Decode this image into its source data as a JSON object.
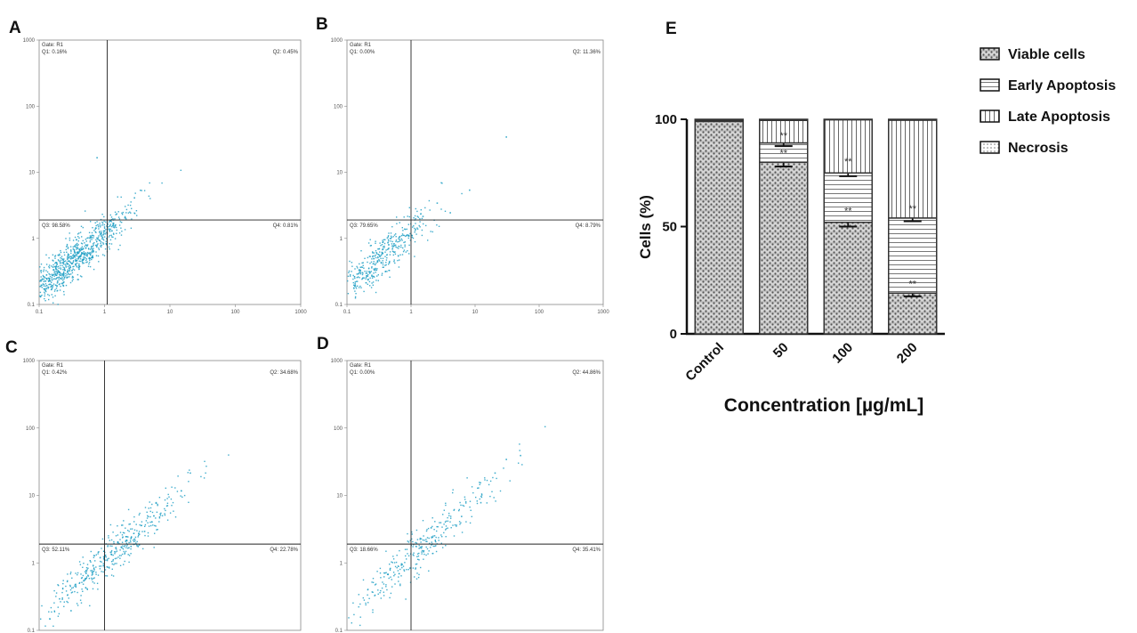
{
  "colors": {
    "dot": "#1e9fc4",
    "ink": "#222222",
    "bar_edge": "#333333"
  },
  "chart_data": [
    {
      "panel": "A",
      "type": "scatter",
      "xscale": "log",
      "yscale": "log",
      "xlim": [
        0.1,
        1000
      ],
      "ylim": [
        0.1,
        1000
      ],
      "x_ticks": [
        "0.1",
        "1",
        "10",
        "100",
        "1000"
      ],
      "y_ticks": [
        "0.1",
        "1",
        "10",
        "100",
        "1000"
      ],
      "gate": "Gate: R1",
      "gate_x": 1.1,
      "gate_y": 1.9,
      "quadrants": {
        "q1": "Q1: 0.16%",
        "q2": "Q2: 0.45%",
        "q3": "Q3: 98.58%",
        "q4": "Q4: 0.81%"
      },
      "population": {
        "cx": 0.3,
        "cy": 0.45,
        "spread_x": 0.42,
        "spread_y": 0.38,
        "count": 900
      },
      "outliers": [
        [
          0.75,
          17
        ],
        [
          2.8,
          4.2
        ],
        [
          1.5,
          2.4
        ],
        [
          2.0,
          2.1
        ],
        [
          1.3,
          1.6
        ]
      ]
    },
    {
      "panel": "B",
      "type": "scatter",
      "xscale": "log",
      "yscale": "log",
      "xlim": [
        0.1,
        1000
      ],
      "ylim": [
        0.1,
        1000
      ],
      "x_ticks": [
        "0.1",
        "1",
        "10",
        "100",
        "1000"
      ],
      "y_ticks": [
        "0.1",
        "1",
        "10",
        "100",
        "1000"
      ],
      "gate": "Gate: R1",
      "gate_x": 1.0,
      "gate_y": 1.9,
      "quadrants": {
        "q1": "Q1: 0.00%",
        "q2": "Q2: 11.36%",
        "q3": "Q3: 79.65%",
        "q4": "Q4: 8.79%"
      },
      "population": {
        "cx": 0.35,
        "cy": 0.55,
        "spread_x": 0.33,
        "spread_y": 0.3,
        "count": 420
      },
      "outliers": [
        [
          8,
          5.5
        ],
        [
          4,
          2.5
        ],
        [
          2.5,
          3.5
        ],
        [
          30,
          35
        ],
        [
          1.5,
          2.2
        ]
      ]
    },
    {
      "panel": "C",
      "type": "scatter",
      "xscale": "log",
      "yscale": "log",
      "xlim": [
        0.1,
        1000
      ],
      "ylim": [
        0.1,
        1000
      ],
      "x_ticks": [],
      "y_ticks": [
        "0.1",
        "1",
        "10",
        "100",
        "1000"
      ],
      "gate": "Gate: R1",
      "gate_x": 1.0,
      "gate_y": 1.9,
      "quadrants": {
        "q1": "Q1: 0.42%",
        "q2": "Q2: 34.68%",
        "q3": "Q3: 52.11%",
        "q4": "Q4: 22.78%"
      },
      "population": {
        "cx": 1.2,
        "cy": 1.3,
        "spread_x": 0.55,
        "spread_y": 0.5,
        "count": 420
      },
      "outliers": [
        [
          20,
          22
        ],
        [
          6,
          8
        ],
        [
          0.2,
          0.3
        ],
        [
          0.3,
          0.2
        ],
        [
          4,
          3
        ]
      ]
    },
    {
      "panel": "D",
      "type": "scatter",
      "xscale": "log",
      "yscale": "log",
      "xlim": [
        0.1,
        1000
      ],
      "ylim": [
        0.1,
        1000
      ],
      "x_ticks": [],
      "y_ticks": [
        "0.1",
        "1",
        "10",
        "100",
        "1000"
      ],
      "gate": "Gate: R1",
      "gate_x": 1.0,
      "gate_y": 1.9,
      "quadrants": {
        "q1": "Q1: 0.00%",
        "q2": "Q2: 44.86%",
        "q3": "Q3: 18.66%",
        "q4": "Q4: 35.41%"
      },
      "population": {
        "cx": 1.4,
        "cy": 1.6,
        "spread_x": 0.6,
        "spread_y": 0.55,
        "count": 330
      },
      "outliers": [
        [
          30,
          35
        ],
        [
          20,
          22
        ],
        [
          50,
          40
        ],
        [
          12,
          8
        ],
        [
          6,
          5
        ]
      ]
    },
    {
      "panel": "E",
      "type": "bar",
      "stacked": true,
      "categories": [
        "Control",
        "50",
        "100",
        "200"
      ],
      "series": [
        {
          "name": "Viable cells",
          "values": [
            99,
            80,
            52,
            19
          ]
        },
        {
          "name": "Early Apoptosis",
          "values": [
            0,
            9,
            23,
            35
          ]
        },
        {
          "name": "Late Apoptosis",
          "values": [
            0.6,
            10.5,
            24.8,
            45.6
          ]
        },
        {
          "name": "Necrosis",
          "values": [
            0.4,
            0.5,
            0.2,
            0.4
          ]
        }
      ],
      "errors": [
        [
          0,
          2,
          2,
          1.5
        ],
        [
          0,
          1.5,
          1.5,
          1.5
        ],
        [
          0,
          0,
          0,
          0
        ],
        [
          0,
          0,
          0,
          0
        ]
      ],
      "significance": [
        {
          "category": "50",
          "value": 82,
          "label": "**"
        },
        {
          "category": "50",
          "value": 90,
          "label": "**"
        },
        {
          "category": "100",
          "value": 55,
          "label": "**"
        },
        {
          "category": "100",
          "value": 78,
          "label": "**"
        },
        {
          "category": "200",
          "value": 21,
          "label": "**"
        },
        {
          "category": "200",
          "value": 56,
          "label": "**"
        }
      ],
      "ylim": [
        0,
        100
      ],
      "y_ticks": [
        "0",
        "50",
        "100"
      ],
      "xlabel": "Concentration [µg/mL]",
      "ylabel": "Cells (%)",
      "legend": [
        "Viable cells",
        "Early Apoptosis",
        "Late Apoptosis",
        "Necrosis"
      ]
    }
  ]
}
